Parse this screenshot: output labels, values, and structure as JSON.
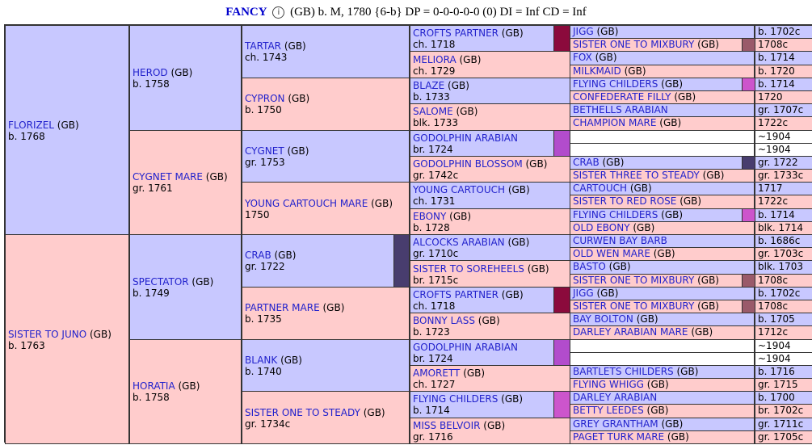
{
  "header": {
    "name": "FANCY",
    "details": " (GB) b. M, 1780 {6-b} DP = 0-0-0-0-0 (0) DI = Inf   CD = Inf"
  },
  "gen1": [
    {
      "name": "FLORIZEL",
      "suffix": " (GB)",
      "year": "b. 1768"
    },
    {
      "name": "SISTER TO JUNO",
      "suffix": " (GB)",
      "year": "b. 1763"
    }
  ],
  "gen2": [
    {
      "name": "HEROD",
      "suffix": " (GB)",
      "year": "b. 1758"
    },
    {
      "name": "CYGNET MARE",
      "suffix": " (GB)",
      "year": "gr. 1761"
    },
    {
      "name": "SPECTATOR",
      "suffix": " (GB)",
      "year": "b. 1749"
    },
    {
      "name": "HORATIA",
      "suffix": " (GB)",
      "year": "b. 1758"
    }
  ],
  "gen3": [
    {
      "name": "TARTAR",
      "suffix": " (GB)",
      "year": "ch. 1743"
    },
    {
      "name": "CYPRON",
      "suffix": " (GB)",
      "year": "b. 1750"
    },
    {
      "name": "CYGNET",
      "suffix": " (GB)",
      "year": "gr. 1753"
    },
    {
      "name": "YOUNG CARTOUCH MARE",
      "suffix": " (GB)",
      "year": "1750"
    },
    {
      "name": "CRAB",
      "suffix": " (GB)",
      "year": "gr. 1722"
    },
    {
      "name": "PARTNER MARE",
      "suffix": " (GB)",
      "year": "b. 1735"
    },
    {
      "name": "BLANK",
      "suffix": " (GB)",
      "year": "b. 1740"
    },
    {
      "name": "SISTER ONE TO STEADY",
      "suffix": " (GB)",
      "year": "gr. 1734c"
    }
  ],
  "gen4": [
    {
      "name": "CROFTS PARTNER",
      "suffix": " (GB)",
      "year": "ch. 1718"
    },
    {
      "name": "MELIORA",
      "suffix": " (GB)",
      "year": "ch. 1729"
    },
    {
      "name": "BLAZE",
      "suffix": " (GB)",
      "year": "b. 1733"
    },
    {
      "name": "SALOME",
      "suffix": " (GB)",
      "year": "blk. 1733"
    },
    {
      "name": "GODOLPHIN ARABIAN",
      "suffix": "",
      "year": "br. 1724"
    },
    {
      "name": "GODOLPHIN BLOSSOM",
      "suffix": " (GB)",
      "year": "gr. 1742c"
    },
    {
      "name": "YOUNG CARTOUCH",
      "suffix": " (GB)",
      "year": "ch. 1731"
    },
    {
      "name": "EBONY",
      "suffix": " (GB)",
      "year": "b. 1728"
    },
    {
      "name": "ALCOCKS ARABIAN",
      "suffix": " (GB)",
      "year": "gr. 1710c"
    },
    {
      "name": "SISTER TO SOREHEELS",
      "suffix": " (GB)",
      "year": "br. 1715c"
    },
    {
      "name": "CROFTS PARTNER",
      "suffix": " (GB)",
      "year": "ch. 1718"
    },
    {
      "name": "BONNY LASS",
      "suffix": " (GB)",
      "year": "b. 1723"
    },
    {
      "name": "GODOLPHIN ARABIAN",
      "suffix": "",
      "year": "br. 1724"
    },
    {
      "name": "AMORETT",
      "suffix": " (GB)",
      "year": "ch. 1727"
    },
    {
      "name": "FLYING CHILDERS",
      "suffix": " (GB)",
      "year": "b. 1714"
    },
    {
      "name": "MISS BELVOIR",
      "suffix": " (GB)",
      "year": "gr. 1716"
    }
  ],
  "gen5": [
    {
      "name": "JIGG",
      "suffix": " (GB)",
      "year": "b. 1702c"
    },
    {
      "name": "SISTER ONE TO MIXBURY",
      "suffix": " (GB)",
      "year": "1708c"
    },
    {
      "name": "FOX",
      "suffix": " (GB)",
      "year": "b. 1714"
    },
    {
      "name": "MILKMAID",
      "suffix": " (GB)",
      "year": "b. 1720"
    },
    {
      "name": "FLYING CHILDERS",
      "suffix": " (GB)",
      "year": "b. 1714"
    },
    {
      "name": "CONFEDERATE FILLY",
      "suffix": " (GB)",
      "year": "1720"
    },
    {
      "name": "BETHELLS ARABIAN",
      "suffix": "",
      "year": "gr. 1707c"
    },
    {
      "name": "CHAMPION MARE",
      "suffix": " (GB)",
      "year": "1722c"
    },
    {
      "name": "",
      "suffix": "",
      "year": "~1904"
    },
    {
      "name": "",
      "suffix": "",
      "year": "~1904"
    },
    {
      "name": "CRAB",
      "suffix": " (GB)",
      "year": "gr. 1722"
    },
    {
      "name": "SISTER THREE TO STEADY",
      "suffix": " (GB)",
      "year": "gr. 1733c"
    },
    {
      "name": "CARTOUCH",
      "suffix": " (GB)",
      "year": "1717"
    },
    {
      "name": "SISTER TO RED ROSE",
      "suffix": " (GB)",
      "year": "1722c"
    },
    {
      "name": "FLYING CHILDERS",
      "suffix": " (GB)",
      "year": "b. 1714"
    },
    {
      "name": "OLD EBONY",
      "suffix": " (GB)",
      "year": "blk. 1714"
    },
    {
      "name": "CURWEN BAY BARB",
      "suffix": "",
      "year": "b. 1686c"
    },
    {
      "name": "OLD WEN MARE",
      "suffix": " (GB)",
      "year": "gr. 1703c"
    },
    {
      "name": "BASTO",
      "suffix": " (GB)",
      "year": "blk. 1703"
    },
    {
      "name": "SISTER ONE TO MIXBURY",
      "suffix": " (GB)",
      "year": "1708c"
    },
    {
      "name": "JIGG",
      "suffix": " (GB)",
      "year": "b. 1702c"
    },
    {
      "name": "SISTER ONE TO MIXBURY",
      "suffix": " (GB)",
      "year": "1708c"
    },
    {
      "name": "BAY BOLTON",
      "suffix": " (GB)",
      "year": "b. 1705"
    },
    {
      "name": "DARLEY ARABIAN MARE",
      "suffix": " (GB)",
      "year": "1712c"
    },
    {
      "name": "",
      "suffix": "",
      "year": "~1904"
    },
    {
      "name": "",
      "suffix": "",
      "year": "~1904"
    },
    {
      "name": "BARTLETS CHILDERS",
      "suffix": " (GB)",
      "year": "b. 1716"
    },
    {
      "name": "FLYING WHIGG",
      "suffix": " (GB)",
      "year": "gr. 1715"
    },
    {
      "name": "DARLEY ARABIAN",
      "suffix": "",
      "year": "b. 1700"
    },
    {
      "name": "BETTY LEEDES",
      "suffix": " (GB)",
      "year": "br. 1702c"
    },
    {
      "name": "GREY GRANTHAM",
      "suffix": " (GB)",
      "year": "gr. 1711c"
    },
    {
      "name": "PAGET TURK MARE",
      "suffix": " (GB)",
      "year": "gr. 1705c"
    }
  ],
  "colors": {
    "male_bg": "#c8c8ff",
    "female_bg": "#ffcccc",
    "swatch_crofts_partner": "#8b0a3c",
    "swatch_crab": "#483d6e",
    "swatch_godolphin_arabian": "#b24ccc",
    "swatch_flying_childers": "#cc55cc",
    "swatch_sister_mixbury": "#9a5a6a",
    "swatch_crab_gen5": "#483d6e"
  }
}
